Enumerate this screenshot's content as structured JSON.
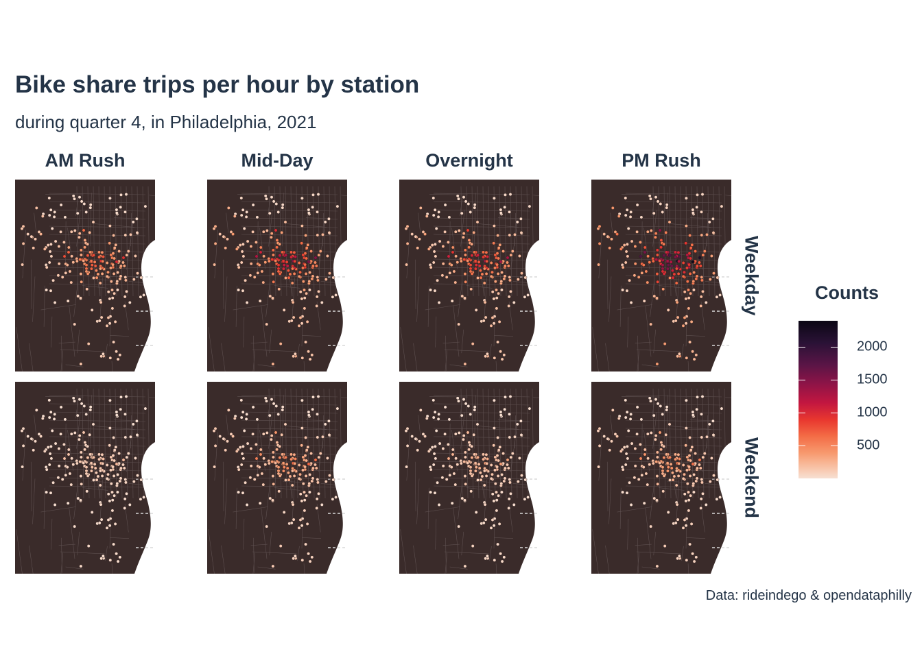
{
  "title": "Bike share trips per hour by station",
  "subtitle": "during quarter 4, in Philadelphia, 2021",
  "caption": "Data: rideindego & opendataphilly",
  "facets": {
    "columns": [
      "AM Rush",
      "Mid-Day",
      "Overnight",
      "PM Rush"
    ],
    "rows": [
      "Weekday",
      "Weekend"
    ]
  },
  "legend": {
    "title": "Counts",
    "breaks": [
      "2000",
      "1500",
      "1000",
      "500"
    ],
    "break_values": [
      2000,
      1500,
      1000,
      500
    ],
    "limits": [
      0,
      2400
    ],
    "colors": [
      "#f7e0d3",
      "#f8c2a6",
      "#f79a6f",
      "#f36b45",
      "#e9382f",
      "#c21640",
      "#8e1447",
      "#5a1546",
      "#2a1236",
      "#0b0714"
    ]
  },
  "map_style": {
    "land_color": "#3a2b2a",
    "street_color": "#5e5050",
    "point_stroke": "#2a1e1d"
  },
  "panel_intensity": {
    "Weekday": {
      "AM Rush": 0.42,
      "Mid-Day": 0.62,
      "Overnight": 0.55,
      "PM Rush": 0.85
    },
    "Weekend": {
      "AM Rush": 0.12,
      "Mid-Day": 0.3,
      "Overnight": 0.18,
      "PM Rush": 0.28
    }
  }
}
